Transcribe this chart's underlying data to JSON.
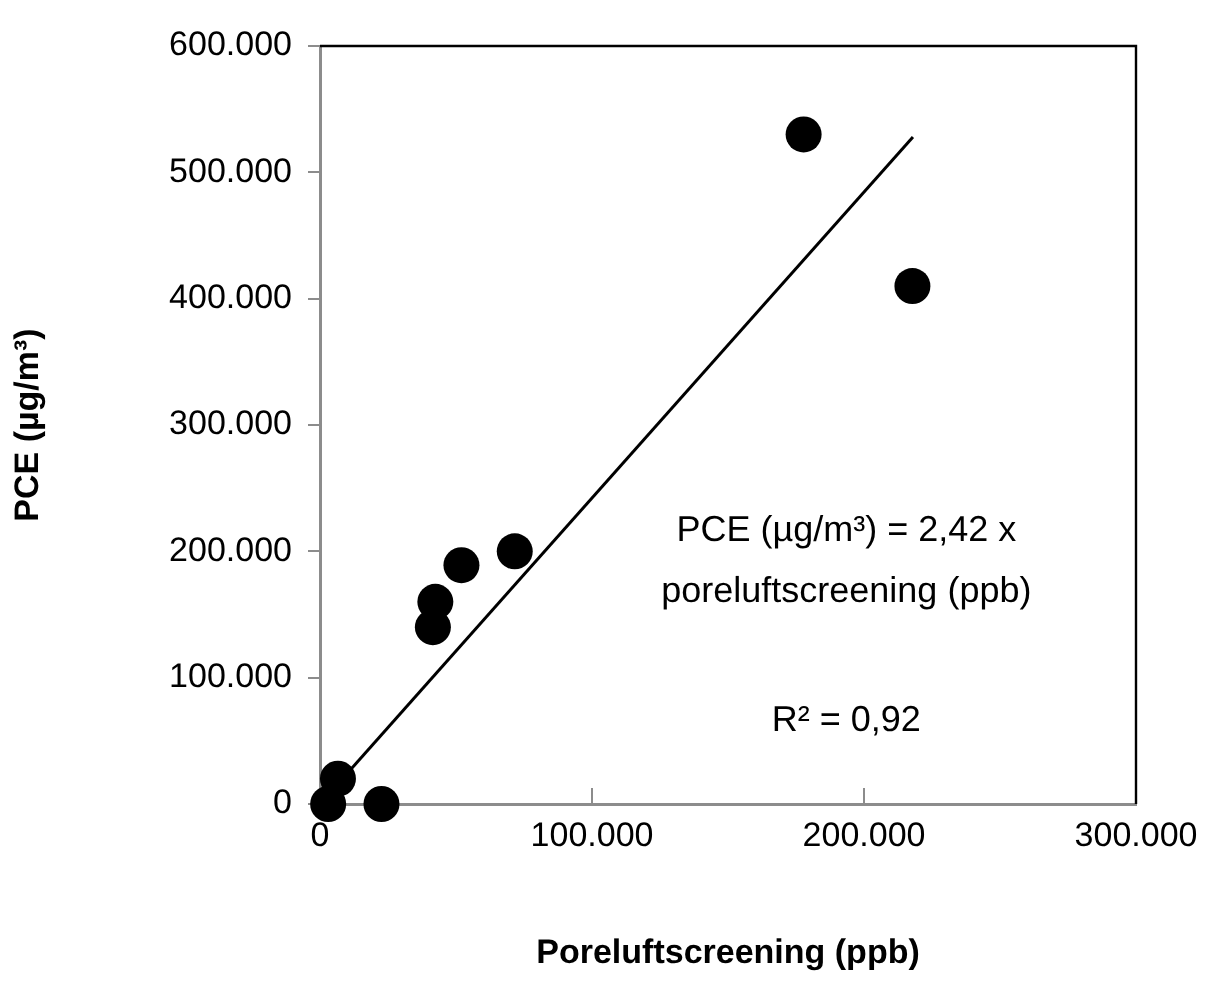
{
  "chart_data": {
    "type": "scatter",
    "xlabel": "Poreluftscreening (ppb)",
    "ylabel": "PCE (µg/m³)",
    "xlim": [
      0,
      300000
    ],
    "xticks": [
      0,
      {
        "value": 100000,
        "label": "100.000"
      },
      {
        "value": 200000,
        "label": "200.000"
      },
      {
        "value": 300000,
        "label": "300.000"
      }
    ],
    "ylim": [
      0,
      600000
    ],
    "yticks": [
      0,
      {
        "value": 100000,
        "label": "100.000"
      },
      {
        "value": 200000,
        "label": "200.000"
      },
      {
        "value": 300000,
        "label": "300.000"
      },
      {
        "value": 400000,
        "label": "400.000"
      },
      {
        "value": 500000,
        "label": "500.000"
      },
      {
        "value": 600000,
        "label": "600.000"
      }
    ],
    "grid": false,
    "legend": false,
    "marker": "circle",
    "series": [
      {
        "color": "#000000",
        "x": [
          3000,
          6600,
          22600,
          41500,
          42400,
          52000,
          71600,
          177800,
          217800
        ],
        "values": [
          0,
          20000,
          0,
          140000,
          160000,
          189000,
          200000,
          530000,
          410000
        ]
      },
      {
        "type": "line",
        "color": "#000000",
        "marker": "none",
        "line_style": "solid",
        "x": [
          0,
          218000
        ],
        "values": [
          0,
          528000
        ]
      }
    ],
    "annotations": [
      "PCE (µg/m³) = 2,42 x",
      "poreluftscreening (ppb)",
      "R² = 0,92"
    ]
  }
}
